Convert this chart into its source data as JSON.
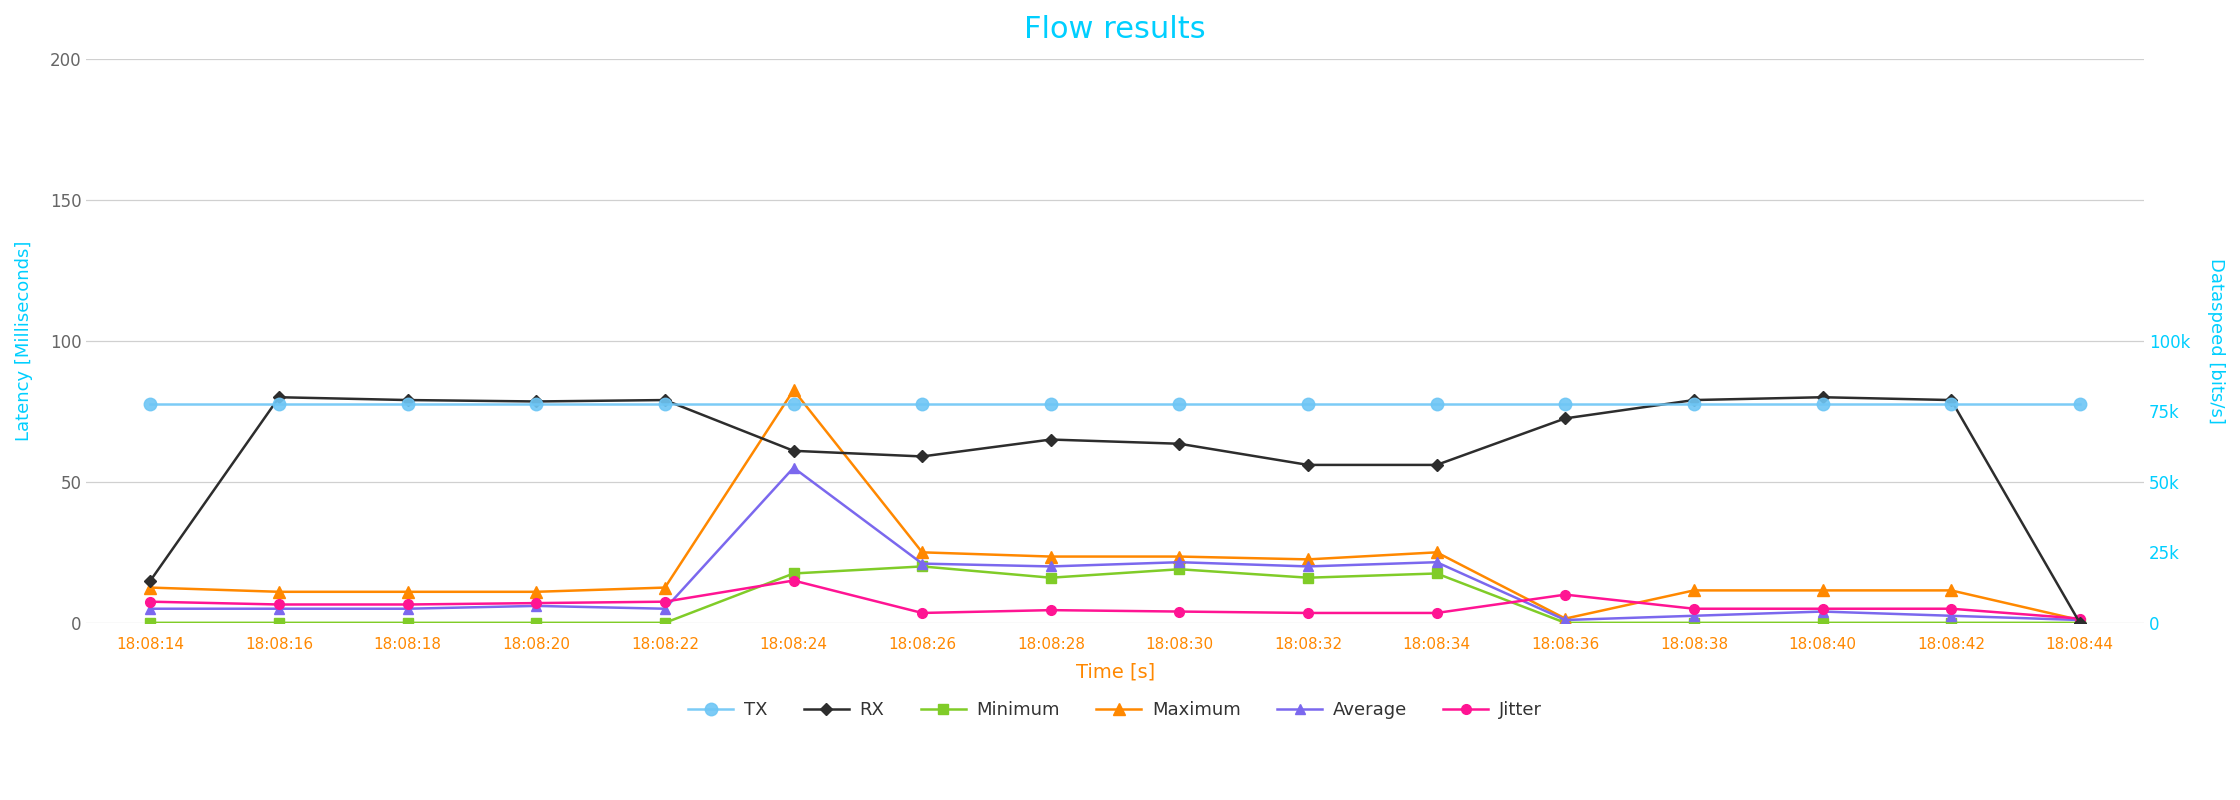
{
  "title": "Flow results",
  "title_color": "#00cfff",
  "xlabel": "Time [s]",
  "xlabel_color": "#ff8800",
  "ylabel_left": "Latency [Milliseconds]",
  "ylabel_right": "Dataspeed [bits/s]",
  "ylabel_color": "#00cfff",
  "background_color": "#ffffff",
  "grid_color": "#d0d0d0",
  "time_labels": [
    "18:08:14",
    "18:08:16",
    "18:08:18",
    "18:08:20",
    "18:08:22",
    "18:08:24",
    "18:08:26",
    "18:08:28",
    "18:08:30",
    "18:08:32",
    "18:08:34",
    "18:08:36",
    "18:08:38",
    "18:08:40",
    "18:08:42",
    "18:08:44"
  ],
  "TX_color": "#6ec6f5",
  "RX_color": "#2d2d2d",
  "Min_color": "#80cc28",
  "Max_color": "#ff8800",
  "Avg_color": "#7b68ee",
  "Jit_color": "#ff1493",
  "TX": [
    77500,
    77500,
    77500,
    77500,
    77500,
    77500,
    77500,
    77500,
    77500,
    77500,
    77500,
    77500,
    77500,
    77500,
    77500,
    77500
  ],
  "RX": [
    15000,
    80000,
    79000,
    78500,
    79000,
    61000,
    59000,
    65000,
    63500,
    56000,
    56000,
    72500,
    79000,
    80000,
    79000,
    0
  ],
  "Minimum": [
    0,
    0,
    0,
    0,
    0,
    17500,
    20000,
    16000,
    19000,
    16000,
    17500,
    0,
    0,
    0,
    0,
    0
  ],
  "Maximum": [
    12500,
    11000,
    11000,
    11000,
    12500,
    82500,
    25000,
    23500,
    23500,
    22500,
    25000,
    1500,
    11500,
    11500,
    11500,
    1000
  ],
  "Average": [
    5000,
    5000,
    5000,
    6000,
    5000,
    55000,
    21000,
    20000,
    21500,
    20000,
    21500,
    1000,
    2500,
    4000,
    2500,
    1000
  ],
  "Jitter": [
    7500,
    6500,
    6500,
    7000,
    7500,
    15000,
    3500,
    4500,
    4000,
    3500,
    3500,
    10000,
    5000,
    5000,
    5000,
    1500
  ],
  "ylim": [
    0,
    200000
  ],
  "yticks_left_vals": [
    0,
    50000,
    100000,
    150000,
    200000
  ],
  "yticks_left_labels": [
    "0",
    "50",
    "100",
    "150",
    "200"
  ],
  "yticks_right_vals": [
    0,
    25000,
    50000,
    75000,
    100000
  ],
  "yticks_right_labels": [
    "0",
    "25k",
    "50k",
    "75k",
    "100k"
  ]
}
